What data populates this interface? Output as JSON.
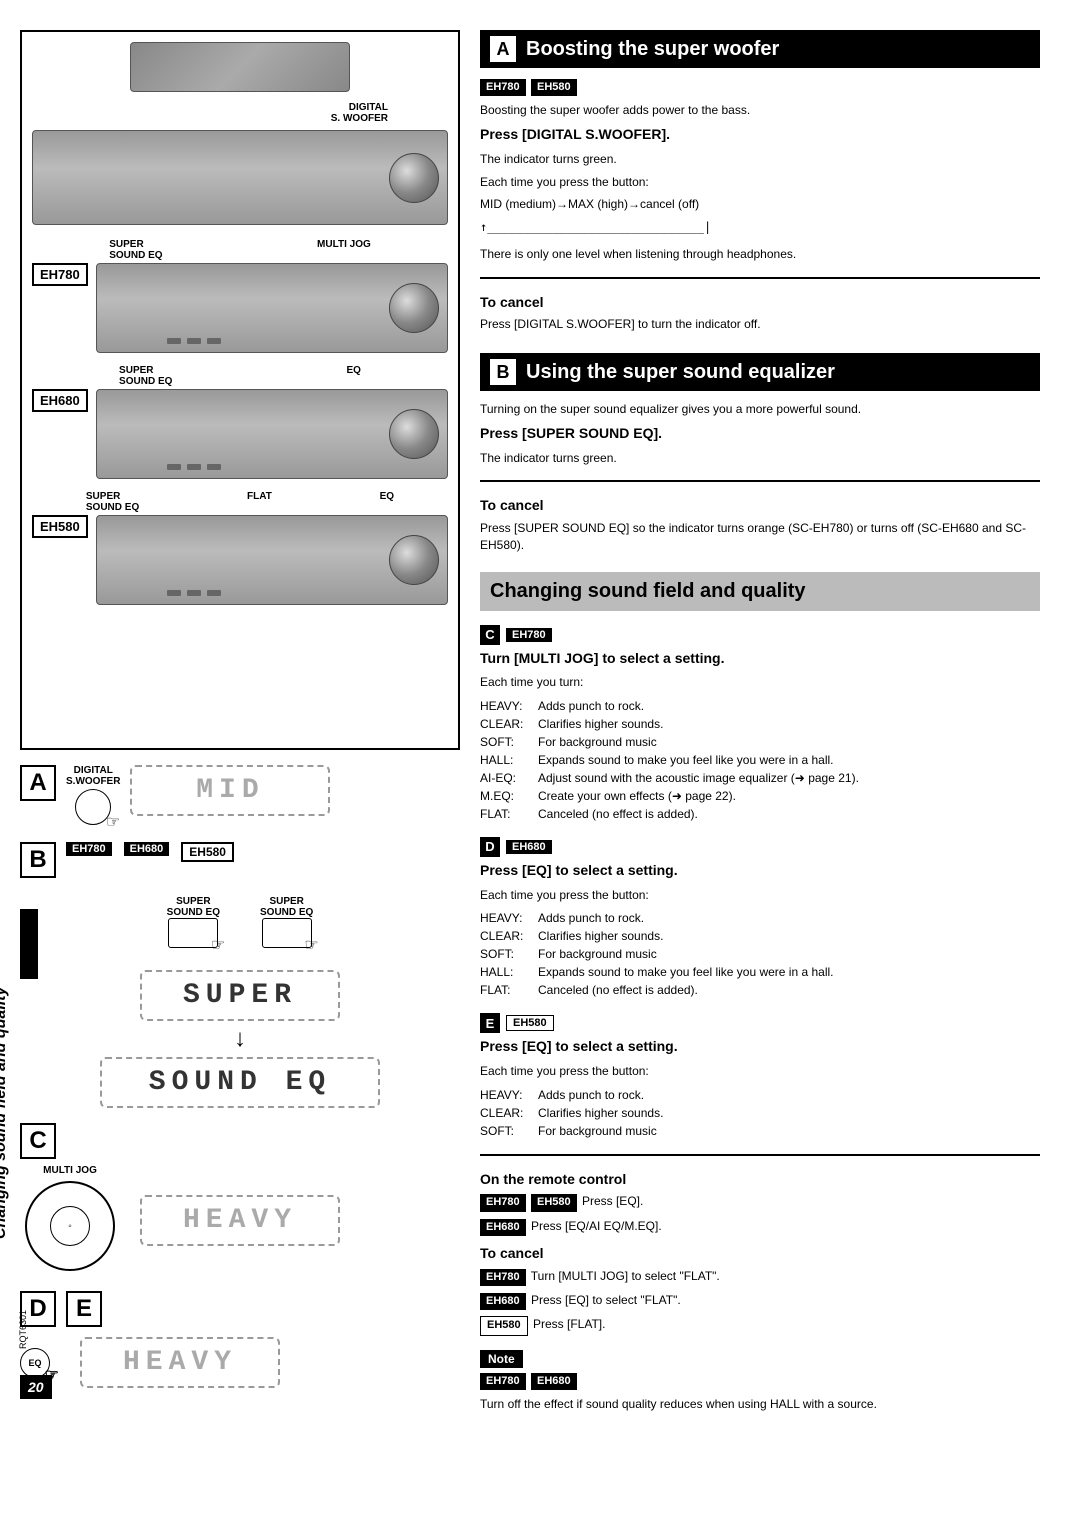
{
  "left": {
    "labels": {
      "digital_swoofer": "DIGITAL\nS. WOOFER",
      "super_sound_eq": "SUPER\nSOUND EQ",
      "multi_jog": "MULTI JOG",
      "eq": "EQ",
      "flat": "FLAT"
    },
    "models": {
      "eh780": "EH780",
      "eh680": "EH680",
      "eh580": "EH580"
    },
    "stepA": {
      "letter": "A",
      "btn_label": "DIGITAL\nS.WOOFER",
      "display": "MID"
    },
    "stepB": {
      "letter": "B",
      "badges": [
        "EH780",
        "EH680",
        "EH580"
      ],
      "btn1_label": "SUPER\nSOUND EQ",
      "btn2_label": "SUPER\nSOUND EQ",
      "display1": "SUPER",
      "display2": "SOUND EQ"
    },
    "stepC": {
      "letter": "C",
      "jog_label": "MULTI JOG",
      "display": "HEAVY"
    },
    "stepDE": {
      "letterD": "D",
      "letterE": "E",
      "btn_label": "EQ",
      "display": "HEAVY"
    },
    "vertical_label": "Changing sound field and quality",
    "doc_code": "RQT6301",
    "page_number": "20"
  },
  "right": {
    "secA": {
      "letter": "A",
      "title": "Boosting the super woofer",
      "badges": [
        "EH780",
        "EH580"
      ],
      "intro": "Boosting the super woofer adds power to the bass.",
      "press": "Press [DIGITAL S.WOOFER].",
      "line1": "The indicator turns green.",
      "line2": "Each time you press the button:",
      "line3": "MID (medium)→MAX (high)→cancel (off)",
      "line4": "↑______________________________|",
      "note": "There is only one level when listening through headphones.",
      "cancel_h": "To cancel",
      "cancel_t": "Press [DIGITAL S.WOOFER] to turn the indicator off."
    },
    "secB": {
      "letter": "B",
      "title": "Using the super sound equalizer",
      "intro": "Turning on the super sound equalizer gives you a more powerful sound.",
      "press": "Press [SUPER SOUND EQ].",
      "line1": "The indicator turns green.",
      "cancel_h": "To cancel",
      "cancel_t": "Press [SUPER SOUND EQ] so the indicator turns orange (SC-EH780) or turns off (SC-EH680 and SC-EH580)."
    },
    "secChange": {
      "title": "Changing sound field and quality"
    },
    "secC": {
      "letter": "C",
      "badge": "EH780",
      "press": "Turn [MULTI JOG] to select a setting.",
      "lead": "Each time you turn:",
      "items": [
        [
          "HEAVY:",
          "Adds punch to rock."
        ],
        [
          "CLEAR:",
          "Clarifies higher sounds."
        ],
        [
          "SOFT:",
          "For background music"
        ],
        [
          "HALL:",
          "Expands sound to make you feel like you were in a hall."
        ],
        [
          "AI-EQ:",
          "Adjust sound with the acoustic image equalizer (➜ page 21)."
        ],
        [
          "M.EQ:",
          "Create your own effects (➜ page 22)."
        ],
        [
          "FLAT:",
          "Canceled (no effect is added)."
        ]
      ]
    },
    "secD": {
      "letter": "D",
      "badge": "EH680",
      "press": "Press [EQ] to select a setting.",
      "lead": "Each time you press the button:",
      "items": [
        [
          "HEAVY:",
          "Adds punch to rock."
        ],
        [
          "CLEAR:",
          "Clarifies higher sounds."
        ],
        [
          "SOFT:",
          "For background music"
        ],
        [
          "HALL:",
          "Expands sound to make you feel like you were in a hall."
        ],
        [
          "FLAT:",
          "Canceled (no effect is added)."
        ]
      ]
    },
    "secE": {
      "letter": "E",
      "badge": "EH580",
      "press": "Press [EQ] to select a setting.",
      "lead": "Each time you press the button:",
      "items": [
        [
          "HEAVY:",
          "Adds punch to rock."
        ],
        [
          "CLEAR:",
          "Clarifies higher sounds."
        ],
        [
          "SOFT:",
          "For background music"
        ]
      ]
    },
    "remote": {
      "heading": "On the remote control",
      "r1_badges": [
        "EH780",
        "EH580"
      ],
      "r1_text": "Press [EQ].",
      "r2_badge": "EH680",
      "r2_text": "Press [EQ/AI EQ/M.EQ].",
      "cancel_h": "To cancel",
      "c1_badge": "EH780",
      "c1_text": "Turn [MULTI JOG] to select \"FLAT\".",
      "c2_badge": "EH680",
      "c2_text": "Press [EQ] to select \"FLAT\".",
      "c3_badge": "EH580",
      "c3_text": "Press [FLAT].",
      "note_label": "Note",
      "note_badges": [
        "EH780",
        "EH680"
      ],
      "note_text": "Turn off the effect if sound quality reduces when using HALL with a source."
    }
  }
}
